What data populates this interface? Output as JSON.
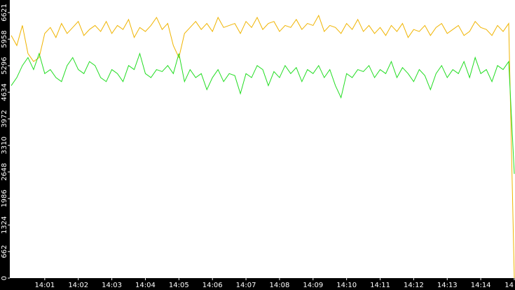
{
  "chart_data": {
    "type": "line",
    "categories": [
      null,
      null,
      null,
      null,
      null,
      null,
      "14:01",
      null,
      null,
      null,
      null,
      null,
      "14:02",
      null,
      null,
      null,
      null,
      null,
      "14:03",
      null,
      null,
      null,
      null,
      null,
      "14:04",
      null,
      null,
      null,
      null,
      null,
      "14:05",
      null,
      null,
      null,
      null,
      null,
      "14:06",
      null,
      null,
      null,
      null,
      null,
      "14:07",
      null,
      null,
      null,
      null,
      null,
      "14:08",
      null,
      null,
      null,
      null,
      null,
      "14:09",
      null,
      null,
      null,
      null,
      null,
      "14:10",
      null,
      null,
      null,
      null,
      null,
      "14:11",
      null,
      null,
      null,
      null,
      null,
      "14:12",
      null,
      null,
      null,
      null,
      null,
      "14:13",
      null,
      null,
      null,
      null,
      null,
      "14:14",
      null,
      null,
      null,
      null,
      null,
      "14"
    ],
    "series": [
      {
        "color": "#f0b400",
        "values": [
          6050,
          5800,
          6300,
          5600,
          5400,
          5500,
          6100,
          6250,
          6000,
          6350,
          6100,
          6250,
          6400,
          6050,
          6200,
          6300,
          6150,
          6400,
          6100,
          6300,
          6200,
          6450,
          6000,
          6250,
          6150,
          6300,
          6500,
          6200,
          6350,
          5800,
          5500,
          6100,
          6250,
          6400,
          6200,
          6350,
          6150,
          6500,
          6250,
          6300,
          6350,
          6100,
          6400,
          6250,
          6500,
          6200,
          6350,
          6400,
          6150,
          6300,
          6250,
          6450,
          6200,
          6350,
          6300,
          6550,
          6150,
          6300,
          6250,
          6100,
          6350,
          6200,
          6450,
          6150,
          6300,
          6100,
          6250,
          6050,
          6300,
          6150,
          6350,
          6000,
          6200,
          6150,
          6300,
          6050,
          6250,
          6350,
          6100,
          6200,
          6300,
          6050,
          6150,
          6400,
          6250,
          6200,
          6050,
          6300,
          6150,
          6350,
          0
        ]
      },
      {
        "color": "#22dd22",
        "values": [
          4800,
          5000,
          5300,
          5500,
          5200,
          5600,
          5100,
          5200,
          5000,
          4900,
          5300,
          5500,
          5200,
          5100,
          5400,
          5300,
          5000,
          4900,
          5200,
          5100,
          4900,
          5300,
          5200,
          5600,
          5100,
          5000,
          5200,
          5150,
          5300,
          5100,
          5600,
          4900,
          5200,
          5000,
          5100,
          4700,
          5000,
          5200,
          4900,
          5100,
          5050,
          4600,
          5100,
          5000,
          5300,
          5200,
          4800,
          5150,
          5000,
          5300,
          5100,
          5250,
          4900,
          5200,
          5100,
          5300,
          5000,
          5200,
          4800,
          4500,
          5100,
          5000,
          5200,
          5150,
          5300,
          5000,
          5200,
          5100,
          5400,
          5000,
          5250,
          5100,
          4900,
          5200,
          5050,
          4700,
          5100,
          5300,
          5000,
          5200,
          5100,
          5400,
          5000,
          5500,
          5100,
          5200,
          4900,
          5300,
          5200,
          5400,
          2600
        ]
      }
    ],
    "ylim": [
      0,
      6935
    ],
    "yticks": [
      0,
      662,
      1324,
      1986,
      2648,
      3310,
      3972,
      4634,
      5296,
      5958,
      6621
    ]
  }
}
